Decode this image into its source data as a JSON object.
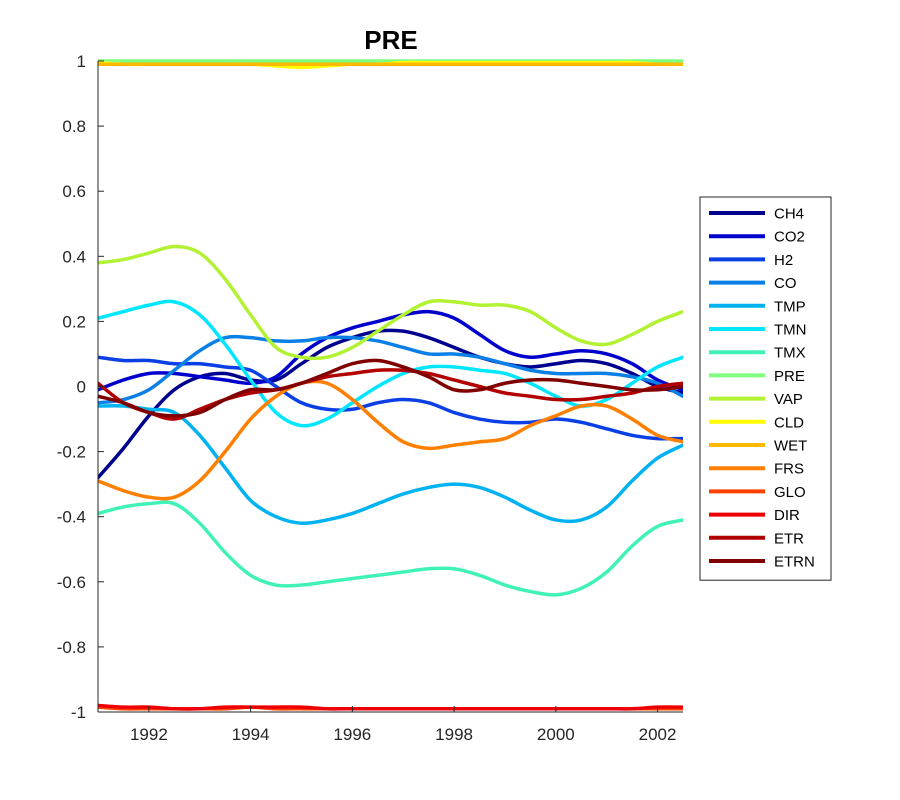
{
  "chart_data": {
    "type": "line",
    "title": "PRE",
    "xlabel": "",
    "ylabel": "",
    "xlim": [
      1991,
      2002.5
    ],
    "ylim": [
      -1,
      1
    ],
    "xticks": [
      1992,
      1994,
      1996,
      1998,
      2000,
      2002
    ],
    "yticks": [
      -1,
      -0.8,
      -0.6,
      -0.4,
      -0.2,
      0,
      0.2,
      0.4,
      0.6,
      0.8,
      1
    ],
    "ytick_labels": [
      "-1",
      "-0.8",
      "-0.6",
      "-0.4",
      "-0.2",
      "0",
      "0.2",
      "0.4",
      "0.6",
      "0.8",
      "1"
    ],
    "grid": false,
    "legend_position": "right",
    "x": [
      1991,
      1991.5,
      1992,
      1992.5,
      1993,
      1993.5,
      1994,
      1994.5,
      1995,
      1995.5,
      1996,
      1996.5,
      1997,
      1997.5,
      1998,
      1998.5,
      1999,
      1999.5,
      2000,
      2000.5,
      2001,
      2001.5,
      2002,
      2002.5
    ],
    "series": [
      {
        "name": "CH4",
        "color": "#00008f",
        "values": [
          -0.28,
          -0.19,
          -0.09,
          -0.01,
          0.03,
          0.04,
          0.02,
          0.02,
          0.07,
          0.12,
          0.15,
          0.17,
          0.17,
          0.15,
          0.12,
          0.09,
          0.07,
          0.06,
          0.07,
          0.08,
          0.07,
          0.04,
          0.0,
          -0.02
        ]
      },
      {
        "name": "CO2",
        "color": "#0000cc",
        "values": [
          -0.01,
          0.02,
          0.04,
          0.04,
          0.03,
          0.02,
          0.01,
          0.03,
          0.1,
          0.15,
          0.18,
          0.2,
          0.22,
          0.23,
          0.21,
          0.16,
          0.11,
          0.09,
          0.1,
          0.11,
          0.1,
          0.07,
          0.02,
          -0.01
        ]
      },
      {
        "name": "H2",
        "color": "#0a3fe6",
        "values": [
          0.09,
          0.08,
          0.08,
          0.07,
          0.07,
          0.06,
          0.05,
          0.0,
          -0.05,
          -0.07,
          -0.07,
          -0.05,
          -0.04,
          -0.05,
          -0.08,
          -0.1,
          -0.11,
          -0.11,
          -0.1,
          -0.11,
          -0.13,
          -0.15,
          -0.16,
          -0.16
        ]
      },
      {
        "name": "CO",
        "color": "#0a7fe6",
        "values": [
          -0.05,
          -0.04,
          -0.01,
          0.05,
          0.11,
          0.15,
          0.15,
          0.14,
          0.14,
          0.15,
          0.15,
          0.14,
          0.12,
          0.1,
          0.1,
          0.09,
          0.07,
          0.05,
          0.04,
          0.04,
          0.04,
          0.03,
          0.01,
          -0.03
        ]
      },
      {
        "name": "TMP",
        "color": "#00b2f2",
        "values": [
          -0.06,
          -0.06,
          -0.07,
          -0.08,
          -0.15,
          -0.25,
          -0.35,
          -0.4,
          -0.42,
          -0.41,
          -0.39,
          -0.36,
          -0.33,
          -0.31,
          -0.3,
          -0.31,
          -0.34,
          -0.38,
          -0.41,
          -0.41,
          -0.37,
          -0.29,
          -0.22,
          -0.18
        ]
      },
      {
        "name": "TMN",
        "color": "#00e6ff",
        "values": [
          0.21,
          0.23,
          0.25,
          0.26,
          0.22,
          0.13,
          0.02,
          -0.08,
          -0.12,
          -0.1,
          -0.05,
          0.0,
          0.04,
          0.06,
          0.06,
          0.05,
          0.04,
          0.01,
          -0.03,
          -0.06,
          -0.04,
          0.01,
          0.06,
          0.09
        ]
      },
      {
        "name": "TMX",
        "color": "#40f2b8",
        "values": [
          -0.39,
          -0.37,
          -0.36,
          -0.36,
          -0.42,
          -0.51,
          -0.58,
          -0.61,
          -0.61,
          -0.6,
          -0.59,
          -0.58,
          -0.57,
          -0.56,
          -0.56,
          -0.58,
          -0.61,
          -0.63,
          -0.64,
          -0.62,
          -0.57,
          -0.49,
          -0.43,
          -0.41
        ]
      },
      {
        "name": "PRE",
        "color": "#7fff7f",
        "values": [
          1,
          1,
          1,
          1,
          1,
          1,
          1,
          1,
          1,
          1,
          1,
          1,
          1,
          1,
          1,
          1,
          1,
          1,
          1,
          1,
          1,
          1,
          1,
          1
        ]
      },
      {
        "name": "VAP",
        "color": "#b2f233",
        "values": [
          0.38,
          0.39,
          0.41,
          0.43,
          0.41,
          0.33,
          0.22,
          0.12,
          0.09,
          0.09,
          0.12,
          0.17,
          0.22,
          0.26,
          0.26,
          0.25,
          0.25,
          0.23,
          0.18,
          0.14,
          0.13,
          0.16,
          0.2,
          0.23
        ]
      },
      {
        "name": "CLD",
        "color": "#ffff00",
        "values": [
          0.995,
          0.99,
          0.99,
          0.99,
          0.99,
          0.99,
          0.99,
          0.985,
          0.98,
          0.985,
          0.99,
          0.99,
          0.995,
          0.995,
          0.995,
          0.995,
          0.995,
          0.995,
          0.995,
          0.995,
          0.995,
          0.995,
          0.99,
          0.99
        ]
      },
      {
        "name": "WET",
        "color": "#ffb800",
        "values": [
          0.99,
          0.99,
          0.99,
          0.99,
          0.99,
          0.99,
          0.99,
          0.99,
          0.99,
          0.99,
          0.99,
          0.99,
          0.99,
          0.99,
          0.99,
          0.99,
          0.99,
          0.99,
          0.99,
          0.99,
          0.99,
          0.99,
          0.99,
          0.99
        ]
      },
      {
        "name": "FRS",
        "color": "#ff7f00",
        "values": [
          -0.29,
          -0.32,
          -0.34,
          -0.34,
          -0.29,
          -0.2,
          -0.1,
          -0.03,
          0.01,
          0.01,
          -0.04,
          -0.11,
          -0.17,
          -0.19,
          -0.18,
          -0.17,
          -0.16,
          -0.12,
          -0.09,
          -0.06,
          -0.06,
          -0.1,
          -0.15,
          -0.17
        ]
      },
      {
        "name": "GLO",
        "color": "#ff4000",
        "values": [
          -0.985,
          -0.99,
          -0.99,
          -0.99,
          -0.99,
          -0.99,
          -0.985,
          -0.99,
          -0.99,
          -0.99,
          -0.99,
          -0.99,
          -0.99,
          -0.99,
          -0.99,
          -0.99,
          -0.99,
          -0.99,
          -0.99,
          -0.99,
          -0.99,
          -0.99,
          -0.99,
          -0.99
        ]
      },
      {
        "name": "DIR",
        "color": "#ee0000",
        "values": [
          -0.98,
          -0.985,
          -0.985,
          -0.99,
          -0.99,
          -0.985,
          -0.985,
          -0.985,
          -0.985,
          -0.99,
          -0.99,
          -0.99,
          -0.99,
          -0.99,
          -0.99,
          -0.99,
          -0.99,
          -0.99,
          -0.99,
          -0.99,
          -0.99,
          -0.99,
          -0.985,
          -0.985
        ]
      },
      {
        "name": "ETR",
        "color": "#b20000",
        "values": [
          0.01,
          -0.05,
          -0.08,
          -0.1,
          -0.07,
          -0.04,
          -0.02,
          -0.01,
          0.01,
          0.03,
          0.04,
          0.05,
          0.05,
          0.04,
          0.02,
          0.0,
          -0.02,
          -0.03,
          -0.04,
          -0.04,
          -0.03,
          -0.02,
          0.0,
          0.01
        ]
      },
      {
        "name": "ETRN",
        "color": "#800000",
        "values": [
          -0.03,
          -0.05,
          -0.08,
          -0.09,
          -0.08,
          -0.04,
          -0.01,
          -0.01,
          0.01,
          0.04,
          0.07,
          0.08,
          0.06,
          0.03,
          -0.01,
          -0.01,
          0.01,
          0.02,
          0.02,
          0.01,
          0.0,
          -0.01,
          -0.01,
          0.0
        ]
      }
    ]
  }
}
